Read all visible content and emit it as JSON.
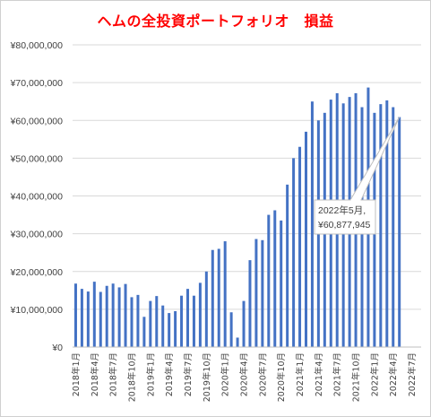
{
  "chart_data": {
    "type": "bar",
    "title": "ヘムの全投資ポートフォリオ　損益",
    "xlabel": "",
    "ylabel": "",
    "ylim": [
      0,
      80000000
    ],
    "yticks": [
      0,
      10000000,
      20000000,
      30000000,
      40000000,
      50000000,
      60000000,
      70000000,
      80000000
    ],
    "ytick_labels": [
      "¥0",
      "¥10,000,000",
      "¥20,000,000",
      "¥30,000,000",
      "¥40,000,000",
      "¥50,000,000",
      "¥60,000,000",
      "¥70,000,000",
      "¥80,000,000"
    ],
    "grid": true,
    "bar_color": "#4472c4",
    "categories": [
      "2018年1月",
      "2018年2月",
      "2018年3月",
      "2018年4月",
      "2018年5月",
      "2018年6月",
      "2018年7月",
      "2018年8月",
      "2018年9月",
      "2018年10月",
      "2018年11月",
      "2018年12月",
      "2019年1月",
      "2019年2月",
      "2019年3月",
      "2019年4月",
      "2019年5月",
      "2019年6月",
      "2019年7月",
      "2019年8月",
      "2019年9月",
      "2019年10月",
      "2019年11月",
      "2019年12月",
      "2020年1月",
      "2020年2月",
      "2020年3月",
      "2020年4月",
      "2020年5月",
      "2020年6月",
      "2020年7月",
      "2020年8月",
      "2020年9月",
      "2020年10月",
      "2020年11月",
      "2020年12月",
      "2021年1月",
      "2021年2月",
      "2021年3月",
      "2021年4月",
      "2021年5月",
      "2021年6月",
      "2021年7月",
      "2021年8月",
      "2021年9月",
      "2021年10月",
      "2021年11月",
      "2021年12月",
      "2022年1月",
      "2022年2月",
      "2022年3月",
      "2022年4月",
      "2022年5月",
      "2022年6月",
      "2022年7月",
      "2022年8月"
    ],
    "tick_labels": [
      "2018年1月",
      "2018年4月",
      "2018年7月",
      "2018年10月",
      "2019年1月",
      "2019年4月",
      "2019年7月",
      "2019年10月",
      "2020年1月",
      "2020年4月",
      "2020年7月",
      "2020年10月",
      "2021年1月",
      "2021年4月",
      "2021年7月",
      "2021年10月",
      "2022年1月",
      "2022年4月",
      "2022年7月"
    ],
    "tick_every": 3,
    "values": [
      16800000,
      15400000,
      14700000,
      17300000,
      14600000,
      16200000,
      16800000,
      15800000,
      16700000,
      13200000,
      13800000,
      8000000,
      12200000,
      13500000,
      11000000,
      9000000,
      9500000,
      13600000,
      15400000,
      13600000,
      17000000,
      20000000,
      25700000,
      26000000,
      28000000,
      9200000,
      2500000,
      12200000,
      23000000,
      28600000,
      28300000,
      35000000,
      36200000,
      33500000,
      43000000,
      50000000,
      53000000,
      57000000,
      65000000,
      60000000,
      62000000,
      65500000,
      67200000,
      64500000,
      66200000,
      67200000,
      63500000,
      68700000,
      62000000,
      64300000,
      65300000,
      63500000,
      60877945,
      null,
      null,
      null
    ],
    "annotation": {
      "category": "2022年5月",
      "line1": "2022年5月,",
      "line2": "¥60,877,945"
    }
  }
}
